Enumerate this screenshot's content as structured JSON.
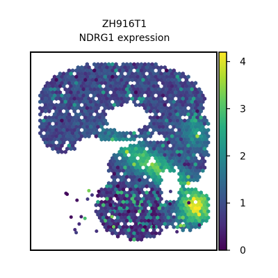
{
  "chart_data": {
    "type": "scatter",
    "title_lines": [
      "ZH916T1",
      "NDRG1 expression"
    ],
    "xlabel": "",
    "ylabel": "",
    "colorbar": {
      "colormap": "viridis",
      "range": [
        0,
        4.2
      ],
      "ticks": [
        0,
        1,
        2,
        3,
        4
      ],
      "tick_labels": [
        "0",
        "1",
        "2",
        "3",
        "4"
      ]
    },
    "axes_ticks_visible": false,
    "grid": false,
    "marker": "hexagon",
    "regions": [
      {
        "region": "upper tissue mass",
        "typical_value": 0.8,
        "value_range": [
          0,
          2.5
        ]
      },
      {
        "region": "right upper edge",
        "typical_value": 1.8,
        "value_range": [
          0.5,
          3.3
        ]
      },
      {
        "region": "central diagonal band",
        "typical_value": 2.8,
        "value_range": [
          1.0,
          3.8
        ]
      },
      {
        "region": "lower right lobe",
        "typical_value": 3.6,
        "value_range": [
          2.5,
          4.2
        ]
      },
      {
        "region": "lower left scatter",
        "typical_value": 0.6,
        "value_range": [
          0,
          3.5
        ]
      }
    ]
  }
}
